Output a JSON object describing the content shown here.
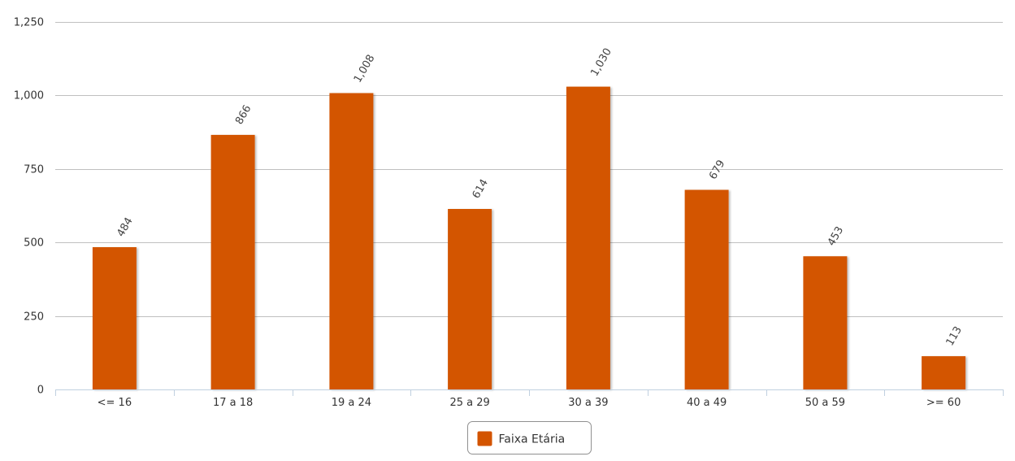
{
  "chart_data": {
    "type": "bar",
    "title": "",
    "xlabel": "",
    "ylabel": "",
    "categories": [
      "<= 16",
      "17 a 18",
      "19 a 24",
      "25 a 29",
      "30 a 39",
      "40 a 49",
      "50 a 59",
      ">= 60"
    ],
    "series": [
      {
        "name": "Faixa Etária",
        "values": [
          484,
          866,
          1008,
          614,
          1030,
          679,
          453,
          113
        ],
        "value_labels": [
          "484",
          "866",
          "1,008",
          "614",
          "1,030",
          "679",
          "453",
          "113"
        ],
        "color": "#d35400"
      }
    ],
    "ylim": [
      0,
      1250
    ],
    "yticks": [
      0,
      250,
      500,
      750,
      1000,
      1250
    ],
    "ytick_labels": [
      "0",
      "250",
      "500",
      "750",
      "1,000",
      "1,250"
    ],
    "grid": true,
    "legend": "bottom-center"
  },
  "colors": {
    "bar": "#d35400",
    "grid": "#c0c0c0",
    "axis": "#c0d0e0",
    "text": "#333333"
  }
}
